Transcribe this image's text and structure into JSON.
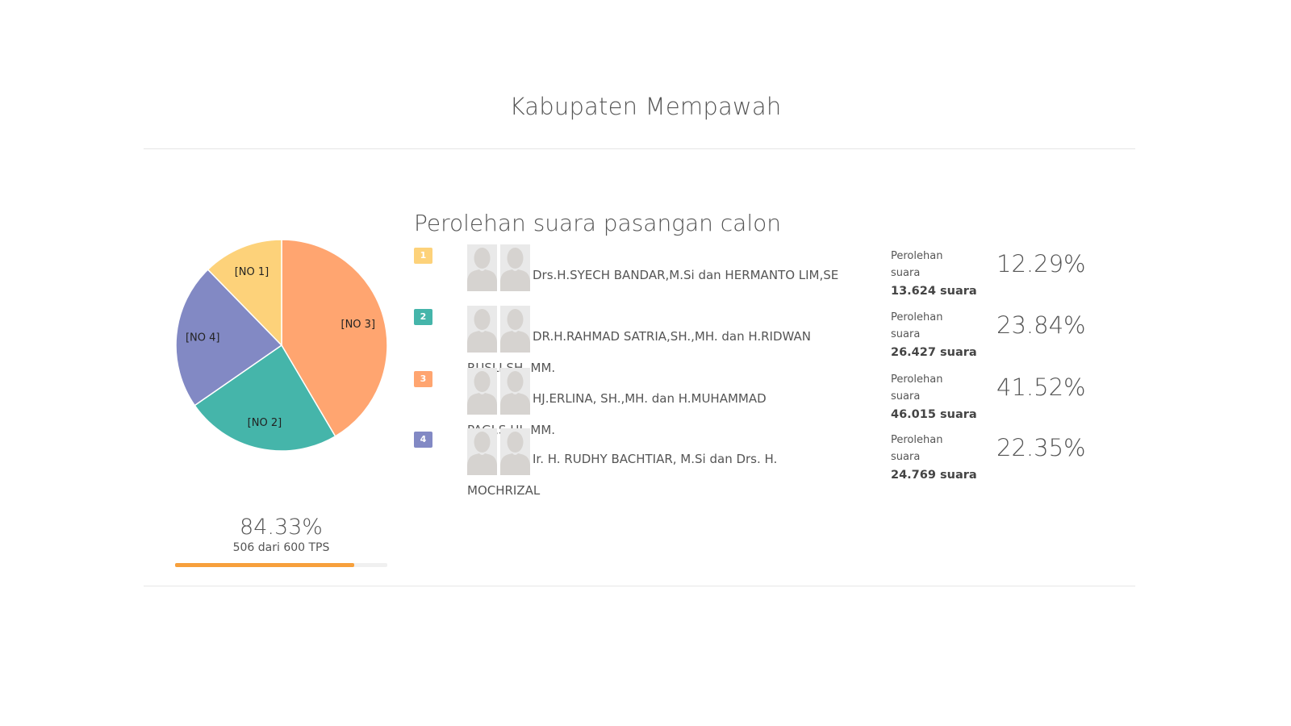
{
  "page": {
    "title": "Kabupaten Mempawah"
  },
  "chart_data": {
    "type": "pie",
    "title": "",
    "slices": [
      {
        "label": "[NO 1]",
        "value": 12.29,
        "color": "#fdd27a"
      },
      {
        "label": "[NO 2]",
        "value": 23.84,
        "color": "#45b5aa"
      },
      {
        "label": "[NO 3]",
        "value": 41.52,
        "color": "#ffa570"
      },
      {
        "label": "[NO 4]",
        "value": 22.35,
        "color": "#8289c4"
      }
    ],
    "order": [
      "[NO 3]",
      "[NO 2]",
      "[NO 4]",
      "[NO 1]"
    ],
    "legend": "none"
  },
  "progress": {
    "percent": "84.33%",
    "caption": "506 dari 600 TPS",
    "fraction": 0.8433,
    "color": "#f7a03c"
  },
  "results": {
    "title": "Perolehan suara pasangan calon",
    "candidates": [
      {
        "number": "1",
        "color": "#fdd27a",
        "name": "Drs.H.SYECH BANDAR,M.Si dan HERMANTO LIM,SE",
        "vote_label": "Perolehan suara",
        "votes": "13.624 suara",
        "percent": "12.29%"
      },
      {
        "number": "2",
        "color": "#45b5aa",
        "name": "DR.H.RAHMAD SATRIA,SH.,MH. dan H.RIDWAN RUSLI,SH.,MM.",
        "vote_label": "Perolehan suara",
        "votes": "26.427 suara",
        "percent": "23.84%"
      },
      {
        "number": "3",
        "color": "#ffa570",
        "name": "HJ.ERLINA, SH.,MH. dan H.MUHAMMAD PAGI,S.HI.,MM.",
        "vote_label": "Perolehan suara",
        "votes": "46.015 suara",
        "percent": "41.52%"
      },
      {
        "number": "4",
        "color": "#8289c4",
        "name": "Ir. H. RUDHY BACHTIAR, M.Si dan Drs. H. MOCHRIZAL",
        "vote_label": "Perolehan suara",
        "votes": "24.769 suara",
        "percent": "22.35%"
      }
    ],
    "avatar_icon": "person-silhouette-icon"
  }
}
